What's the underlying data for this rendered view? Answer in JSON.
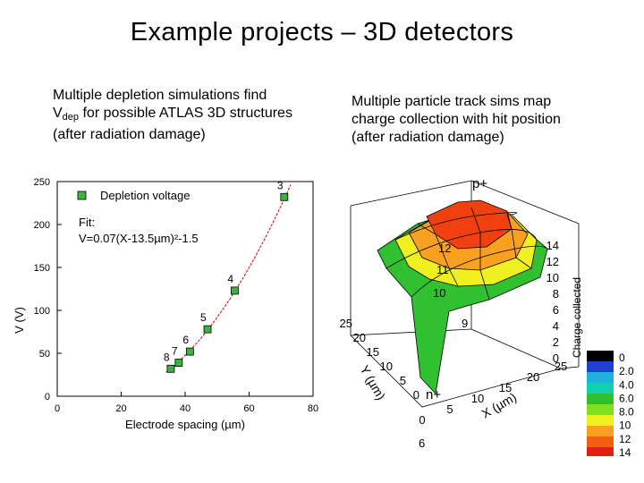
{
  "slide": {
    "title": "Example projects – 3D detectors"
  },
  "left_caption": {
    "pre": "Multiple depletion simulations find",
    "v": "V",
    "sub": "dep",
    "post": " for possible ATLAS 3D structures",
    "line3": "(after radiation damage)"
  },
  "right_caption": {
    "line1": "Multiple particle track sims map",
    "line2": "charge collection with hit position",
    "line3": "(after radiation damage)"
  },
  "colors": {
    "marker_fill": "#3cb33c",
    "fit_curve": "#e02020",
    "surface_red": "#f04010",
    "surface_orange": "#f8a020",
    "surface_yellow": "#f0f020",
    "surface_green": "#30c030"
  },
  "chart_data": [
    {
      "type": "scatter",
      "title": "",
      "xlabel": "Electrode spacing (µm)",
      "ylabel": "V (V)",
      "xlim": [
        0,
        80
      ],
      "ylim": [
        0,
        250
      ],
      "xticks": [
        "0",
        "20",
        "40",
        "60",
        "80"
      ],
      "yticks": [
        "0",
        "50",
        "100",
        "150",
        "200",
        "250"
      ],
      "legend": {
        "entry": "Depletion voltage",
        "placement": "top-left"
      },
      "fit_text": {
        "line1": "Fit:",
        "line2": "V=0.07(X-13.5µm)²-1.5"
      },
      "fit_curve": {
        "a": 0.07,
        "x0": 13.5,
        "c": -1.5,
        "x_range": [
          34,
          80
        ]
      },
      "series": [
        {
          "name": "Depletion voltage",
          "points": [
            {
              "x": 35.5,
              "y": 32,
              "label": "8"
            },
            {
              "x": 38.0,
              "y": 39,
              "label": "7"
            },
            {
              "x": 41.5,
              "y": 52,
              "label": "6"
            },
            {
              "x": 47.0,
              "y": 78,
              "label": "5"
            },
            {
              "x": 55.5,
              "y": 123,
              "label": "4"
            },
            {
              "x": 71.0,
              "y": 232,
              "label": "3"
            }
          ]
        }
      ]
    },
    {
      "type": "surface",
      "title": "",
      "x_axis": {
        "label": "X (µm)",
        "ticks": [
          "0",
          "5",
          "10",
          "15",
          "20",
          "25"
        ]
      },
      "y_axis": {
        "label": "Y (µm)",
        "ticks": [
          "0",
          "5",
          "10",
          "15",
          "20",
          "25"
        ]
      },
      "z_axis": {
        "label": "Charge collected",
        "ticks": [
          "0",
          "2",
          "4",
          "6",
          "8",
          "10",
          "12",
          "14"
        ]
      },
      "corner_labels": {
        "top": "p+",
        "bottom": "n+",
        "bottom_extra": "6"
      },
      "contour_labels": [
        "12",
        "11",
        "10",
        "9"
      ],
      "colorbar": {
        "labels": [
          "0",
          "2.0",
          "4.0",
          "6.0",
          "8.0",
          "10",
          "12",
          "14"
        ],
        "colors": [
          "#000000",
          "#2040d0",
          "#20b0e0",
          "#10d0b0",
          "#30c030",
          "#80e020",
          "#f0f020",
          "#f8a020",
          "#f06010",
          "#e02010"
        ]
      }
    }
  ]
}
